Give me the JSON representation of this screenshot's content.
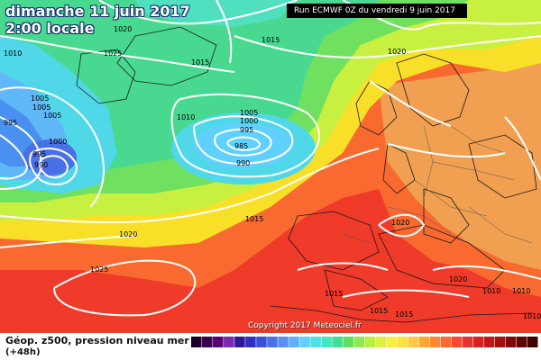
{
  "map": {
    "title_date": "dimanche 11 juin 2017",
    "title_time": "2:00 locale",
    "run_info": "Run ECMWF 0Z du vendredi 9 juin 2017",
    "copyright": "Copyright 2017 Meteociel.fr",
    "legend_title": "Géop. z500, pression niveau mer",
    "legend_subtitle": "(+48h)",
    "isobar_labels": [
      "1020",
      "1025",
      "1015",
      "1010",
      "1020",
      "1015",
      "1005",
      "1005",
      "1005",
      "995",
      "1000",
      "995",
      "990",
      "1010",
      "1005",
      "1000",
      "995",
      "985",
      "990",
      "1020",
      "1015",
      "1020",
      "1025",
      "1020",
      "1015",
      "1015",
      "1015",
      "1010",
      "1010",
      "1010"
    ],
    "scale_colors": [
      "#1a0024",
      "#3a0050",
      "#5a0078",
      "#7a2ab0",
      "#2a1a9a",
      "#3030c0",
      "#3a50d8",
      "#4a70e8",
      "#5a90f0",
      "#60b0f8",
      "#60d0ff",
      "#50e0e8",
      "#40e8c0",
      "#40e090",
      "#60e060",
      "#90e850",
      "#b8f040",
      "#e0f040",
      "#f8f040",
      "#ffe040",
      "#ffc840",
      "#ffa830",
      "#ff8830",
      "#ff6830",
      "#f84830",
      "#e83030",
      "#d82020",
      "#c01818",
      "#a01010",
      "#800808",
      "#600404",
      "#400000"
    ]
  }
}
